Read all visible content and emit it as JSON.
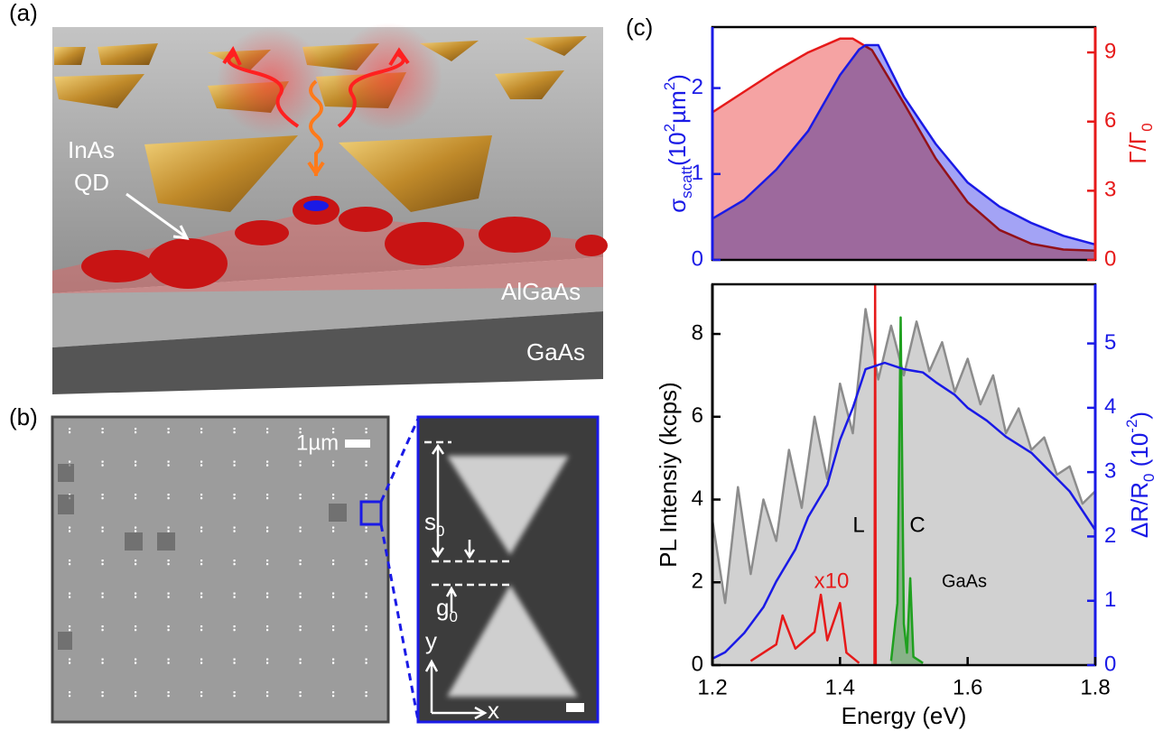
{
  "panel_labels": [
    "(a)",
    "(b)",
    "(c)"
  ],
  "illustration": {
    "qd_label": [
      "InAs",
      "QD"
    ],
    "layers": [
      "AlGaAs",
      "GaAs"
    ]
  },
  "sem": {
    "scale_bar": "1µm",
    "gap_labels": [
      {
        "text": "s",
        "sub": "0"
      },
      {
        "text": "g",
        "sub": "0"
      }
    ],
    "axes": [
      "y",
      "x"
    ]
  },
  "chart_data": [
    {
      "type": "line",
      "y_label": [
        "σ",
        "scatt",
        "(10",
        "2",
        "µm",
        "2",
        ")"
      ],
      "y2_label": [
        "Γ/Γ",
        "0"
      ],
      "y_color": "#1a1ae6",
      "y2_color": "#e61a1a",
      "xlim": [
        1.2,
        1.8
      ],
      "ylim": [
        0,
        2.71
      ],
      "yticks": [
        0,
        1,
        2
      ],
      "y2lim": [
        0,
        10.1
      ],
      "y2ticks": [
        0,
        3,
        6,
        9
      ],
      "series": [
        {
          "color": "#e61a1a",
          "axis": "y2",
          "fill": true,
          "x": [
            1.2,
            1.25,
            1.3,
            1.35,
            1.4,
            1.42,
            1.45,
            1.5,
            1.55,
            1.6,
            1.65,
            1.7,
            1.75,
            1.8
          ],
          "values": [
            6.4,
            7.3,
            8.2,
            9.0,
            9.6,
            9.6,
            9.1,
            6.8,
            4.4,
            2.5,
            1.3,
            0.7,
            0.45,
            0.4
          ]
        },
        {
          "color": "#1a1ae6",
          "fill": true,
          "x": [
            1.2,
            1.25,
            1.3,
            1.35,
            1.4,
            1.43,
            1.44,
            1.46,
            1.5,
            1.55,
            1.6,
            1.65,
            1.7,
            1.75,
            1.8
          ],
          "values": [
            0.48,
            0.7,
            1.05,
            1.5,
            2.15,
            2.45,
            2.5,
            2.5,
            1.9,
            1.35,
            0.9,
            0.62,
            0.43,
            0.28,
            0.18
          ]
        }
      ]
    },
    {
      "type": "line",
      "x_label": "Energy (eV)",
      "y_label": [
        "PL Intensiy (kcps)"
      ],
      "y2_label": [
        "ΔR/R",
        "0",
        " (10",
        "-2",
        ")"
      ],
      "y_color": "#000000",
      "y2_color": "#1a1ae6",
      "xlim": [
        1.2,
        1.8
      ],
      "xticks": [
        1.2,
        1.4,
        1.6,
        1.8
      ],
      "ylim": [
        0,
        9.2
      ],
      "yticks": [
        0,
        2,
        4,
        6,
        8
      ],
      "y2lim": [
        0,
        5.92
      ],
      "y2ticks": [
        0,
        1,
        2,
        3,
        4,
        5
      ],
      "annotations": [
        "L",
        "C",
        "x10",
        "GaAs"
      ],
      "series": [
        {
          "color": "#8c8c8c",
          "fill": true,
          "x": [
            1.2,
            1.22,
            1.24,
            1.26,
            1.28,
            1.3,
            1.32,
            1.34,
            1.36,
            1.38,
            1.4,
            1.42,
            1.44,
            1.46,
            1.48,
            1.5,
            1.52,
            1.54,
            1.56,
            1.58,
            1.6,
            1.62,
            1.64,
            1.66,
            1.68,
            1.7,
            1.72,
            1.74,
            1.76,
            1.78,
            1.8
          ],
          "values": [
            3.5,
            1.5,
            4.3,
            2.2,
            4.0,
            3.0,
            5.2,
            3.8,
            6.0,
            4.5,
            6.8,
            5.6,
            8.6,
            6.9,
            8.2,
            7.0,
            8.3,
            7.1,
            7.8,
            6.6,
            7.4,
            6.3,
            7.0,
            5.6,
            6.2,
            5.2,
            5.5,
            4.6,
            4.8,
            3.9,
            4.2
          ]
        },
        {
          "color": "#e61a1a",
          "x": [
            1.26,
            1.3,
            1.31,
            1.33,
            1.36,
            1.37,
            1.38,
            1.4,
            1.41,
            1.43
          ],
          "values": [
            0.1,
            0.5,
            1.2,
            0.4,
            0.8,
            1.7,
            0.6,
            1.5,
            0.3,
            0.05
          ]
        },
        {
          "color": "#e61a1a",
          "x": [
            1.454,
            1.455,
            1.456
          ],
          "values": [
            0,
            9.2,
            0
          ]
        },
        {
          "color": "#1fa01f",
          "fill": true,
          "x": [
            1.48,
            1.49,
            1.495,
            1.5,
            1.505,
            1.51,
            1.515,
            1.53
          ],
          "values": [
            0.1,
            1.5,
            8.4,
            1.0,
            0.3,
            2.1,
            0.2,
            0.05
          ]
        },
        {
          "color": "#1a1ae6",
          "axis": "y2",
          "x": [
            1.2,
            1.22,
            1.25,
            1.28,
            1.3,
            1.33,
            1.35,
            1.38,
            1.4,
            1.42,
            1.44,
            1.47,
            1.5,
            1.53,
            1.55,
            1.58,
            1.6,
            1.63,
            1.66,
            1.7,
            1.73,
            1.76,
            1.8
          ],
          "values": [
            0.1,
            0.2,
            0.5,
            0.9,
            1.3,
            1.8,
            2.3,
            2.8,
            3.5,
            4.0,
            4.6,
            4.7,
            4.6,
            4.55,
            4.4,
            4.2,
            4.0,
            3.8,
            3.55,
            3.3,
            3.0,
            2.7,
            2.1
          ]
        }
      ]
    }
  ]
}
